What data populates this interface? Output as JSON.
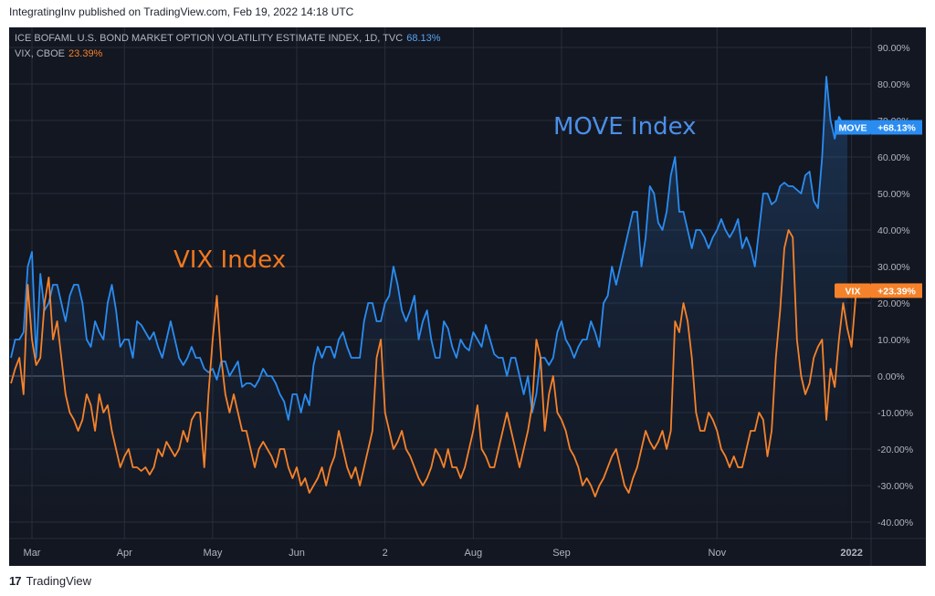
{
  "header": {
    "published": "IntegratingInv published on TradingView.com, Feb 19, 2022 14:18 UTC"
  },
  "legend": {
    "line1_label": "ICE BOFAML U.S. BOND MARKET OPTION VOLATILITY ESTIMATE INDEX, 1D, TVC",
    "line1_value": "68.13%",
    "line2_label": "VIX, CBOE",
    "line2_value": "23.39%"
  },
  "annotations": {
    "move": "MOVE Index",
    "vix": "VIX Index"
  },
  "footer": {
    "brand": "TradingView"
  },
  "colors": {
    "move": "#2a8cf0",
    "vix": "#f5822a",
    "background": "#131722",
    "grid": "#2a2e39"
  },
  "chart_data": {
    "type": "line",
    "y_axis_position": "right",
    "ylim": [
      -40,
      95
    ],
    "grid": true,
    "yticks": [
      -40,
      -30,
      -20,
      -10,
      0,
      10,
      20,
      30,
      40,
      50,
      60,
      70,
      80,
      90
    ],
    "ytick_labels": [
      "-40.00%",
      "-30.00%",
      "-20.00%",
      "-10.00%",
      "0.00%",
      "10.00%",
      "20.00%",
      "30.00%",
      "40.00%",
      "50.00%",
      "60.00%",
      "70.00%",
      "80.00%",
      "90.00%"
    ],
    "xtick_labels": [
      "Mar",
      "Apr",
      "May",
      "Jun",
      "2",
      "Aug",
      "Sep",
      "Nov",
      "2022"
    ],
    "xtick_index": [
      5,
      27,
      48,
      68,
      89,
      110,
      131,
      168,
      200
    ],
    "series": [
      {
        "name": "MOVE",
        "last_label": "+68.13%",
        "values": [
          5,
          10,
          10,
          12,
          30,
          34,
          5,
          28,
          18,
          20,
          25,
          25,
          20,
          15,
          22,
          25,
          25,
          20,
          10,
          8,
          15,
          12,
          10,
          20,
          25,
          18,
          8,
          10,
          10,
          5,
          15,
          14,
          12,
          10,
          12,
          8,
          5,
          10,
          15,
          10,
          5,
          3,
          5,
          8,
          5,
          5,
          2,
          1,
          2,
          -1,
          4,
          4,
          0,
          2,
          4,
          -3,
          -2,
          -2,
          -3,
          -1,
          2,
          0,
          0,
          -2,
          -5,
          -7,
          -12,
          -5,
          -5,
          -10,
          -5,
          -8,
          3,
          8,
          5,
          8,
          8,
          5,
          10,
          12,
          8,
          5,
          5,
          5,
          15,
          20,
          20,
          15,
          15,
          20,
          22,
          30,
          25,
          18,
          15,
          18,
          22,
          10,
          15,
          18,
          10,
          5,
          5,
          15,
          13,
          8,
          5,
          10,
          8,
          7,
          12,
          10,
          8,
          14,
          10,
          6,
          5,
          5,
          0,
          5,
          5,
          0,
          -5,
          0,
          -10,
          -5,
          5,
          5,
          3,
          5,
          12,
          15,
          10,
          8,
          5,
          8,
          10,
          10,
          15,
          12,
          8,
          20,
          22,
          30,
          25,
          30,
          35,
          40,
          45,
          45,
          30,
          38,
          52,
          50,
          42,
          40,
          45,
          55,
          60,
          45,
          45,
          40,
          35,
          40,
          40,
          38,
          35,
          38,
          40,
          43,
          40,
          38,
          40,
          43,
          35,
          38,
          35,
          30,
          40,
          50,
          50,
          47,
          48,
          52,
          53,
          52,
          52,
          51,
          50,
          55,
          56,
          48,
          46,
          60,
          82,
          70,
          65,
          71,
          69,
          68.13
        ]
      },
      {
        "name": "VIX",
        "last_label": "+23.39%",
        "values": [
          -2,
          2,
          5,
          -5,
          25,
          10,
          3,
          5,
          20,
          27,
          10,
          15,
          5,
          -5,
          -10,
          -12,
          -15,
          -12,
          -5,
          -8,
          -15,
          -5,
          -10,
          -8,
          -15,
          -20,
          -25,
          -22,
          -20,
          -25,
          -25,
          -26,
          -25,
          -27,
          -25,
          -20,
          -22,
          -18,
          -20,
          -22,
          -20,
          -15,
          -18,
          -12,
          -10,
          -10,
          -25,
          -5,
          10,
          22,
          5,
          -5,
          -10,
          -5,
          -10,
          -15,
          -15,
          -20,
          -25,
          -20,
          -18,
          -20,
          -22,
          -25,
          -20,
          -20,
          -25,
          -28,
          -25,
          -30,
          -28,
          -32,
          -30,
          -28,
          -25,
          -30,
          -25,
          -22,
          -15,
          -20,
          -25,
          -28,
          -25,
          -30,
          -25,
          -20,
          -15,
          5,
          10,
          -10,
          -15,
          -20,
          -18,
          -15,
          -20,
          -22,
          -25,
          -28,
          -30,
          -28,
          -25,
          -20,
          -22,
          -25,
          -20,
          -25,
          -25,
          -28,
          -25,
          -20,
          -15,
          -8,
          -20,
          -22,
          -25,
          -25,
          -20,
          -15,
          -10,
          -15,
          -20,
          -25,
          -20,
          -15,
          -8,
          10,
          5,
          -15,
          -5,
          0,
          -10,
          -12,
          -15,
          -20,
          -22,
          -25,
          -30,
          -28,
          -30,
          -33,
          -30,
          -28,
          -25,
          -22,
          -20,
          -25,
          -30,
          -32,
          -28,
          -25,
          -20,
          -15,
          -18,
          -20,
          -18,
          -15,
          -20,
          -15,
          15,
          12,
          20,
          15,
          5,
          -10,
          -15,
          -15,
          -10,
          -12,
          -15,
          -20,
          -22,
          -25,
          -22,
          -25,
          -25,
          -20,
          -15,
          -15,
          -10,
          -12,
          -22,
          -15,
          5,
          18,
          35,
          40,
          38,
          10,
          0,
          -5,
          -2,
          5,
          8,
          10,
          -12,
          2,
          -3,
          10,
          20,
          13,
          8,
          22,
          23.39
        ]
      }
    ]
  }
}
